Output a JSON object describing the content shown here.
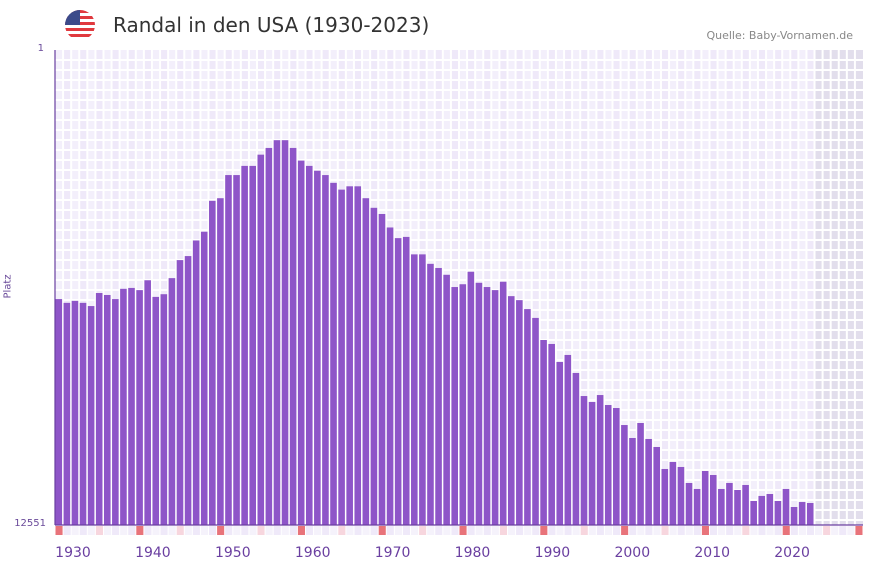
{
  "header": {
    "title": "Randal in den USA (1930-2023)",
    "source": "Quelle: Baby-Vornamen.de",
    "flag_icon": "us-flag-icon"
  },
  "colors": {
    "bar": "#8e55c8",
    "axis": "#6a3fa0",
    "decade_marker": "#e8737a",
    "mid_marker": "#f7d6de",
    "future_shade": "#e2deec"
  },
  "chart_data": {
    "type": "bar",
    "title": "Randal in den USA (1930-2023)",
    "xlabel": "",
    "ylabel": "Platz",
    "y_scale": "log-inverted",
    "ylim": [
      12551,
      1
    ],
    "y_tick_labels": [
      "1",
      "12551"
    ],
    "x_range": [
      1930,
      2029
    ],
    "x_tick_labels": [
      "1930",
      "1940",
      "1950",
      "1960",
      "1970",
      "1980",
      "1990",
      "2000",
      "2010",
      "2020"
    ],
    "grid": true,
    "start_year": 1930,
    "values": [
      141,
      152,
      146,
      152,
      162,
      125,
      130,
      141,
      115,
      113,
      118,
      97,
      135,
      128,
      93,
      65,
      60,
      44,
      37,
      20,
      19,
      12,
      12,
      10,
      10,
      8,
      7,
      6,
      6,
      7,
      9,
      10,
      11,
      12,
      14,
      16,
      15,
      15,
      19,
      23,
      26,
      34,
      42,
      41,
      58,
      58,
      70,
      76,
      87,
      111,
      105,
      82,
      102,
      111,
      118,
      100,
      133,
      144,
      172,
      205,
      318,
      344,
      492,
      428,
      612,
      968,
      1090,
      949,
      1157,
      1228,
      1722,
      2228,
      1654,
      2272,
      2664,
      4124,
      3590,
      3963,
      5446,
      6134,
      4290,
      4647,
      6134,
      5446,
      6260,
      5667,
      7788,
      7046,
      6779,
      7788,
      6134,
      8778,
      7950,
      8107
    ]
  }
}
